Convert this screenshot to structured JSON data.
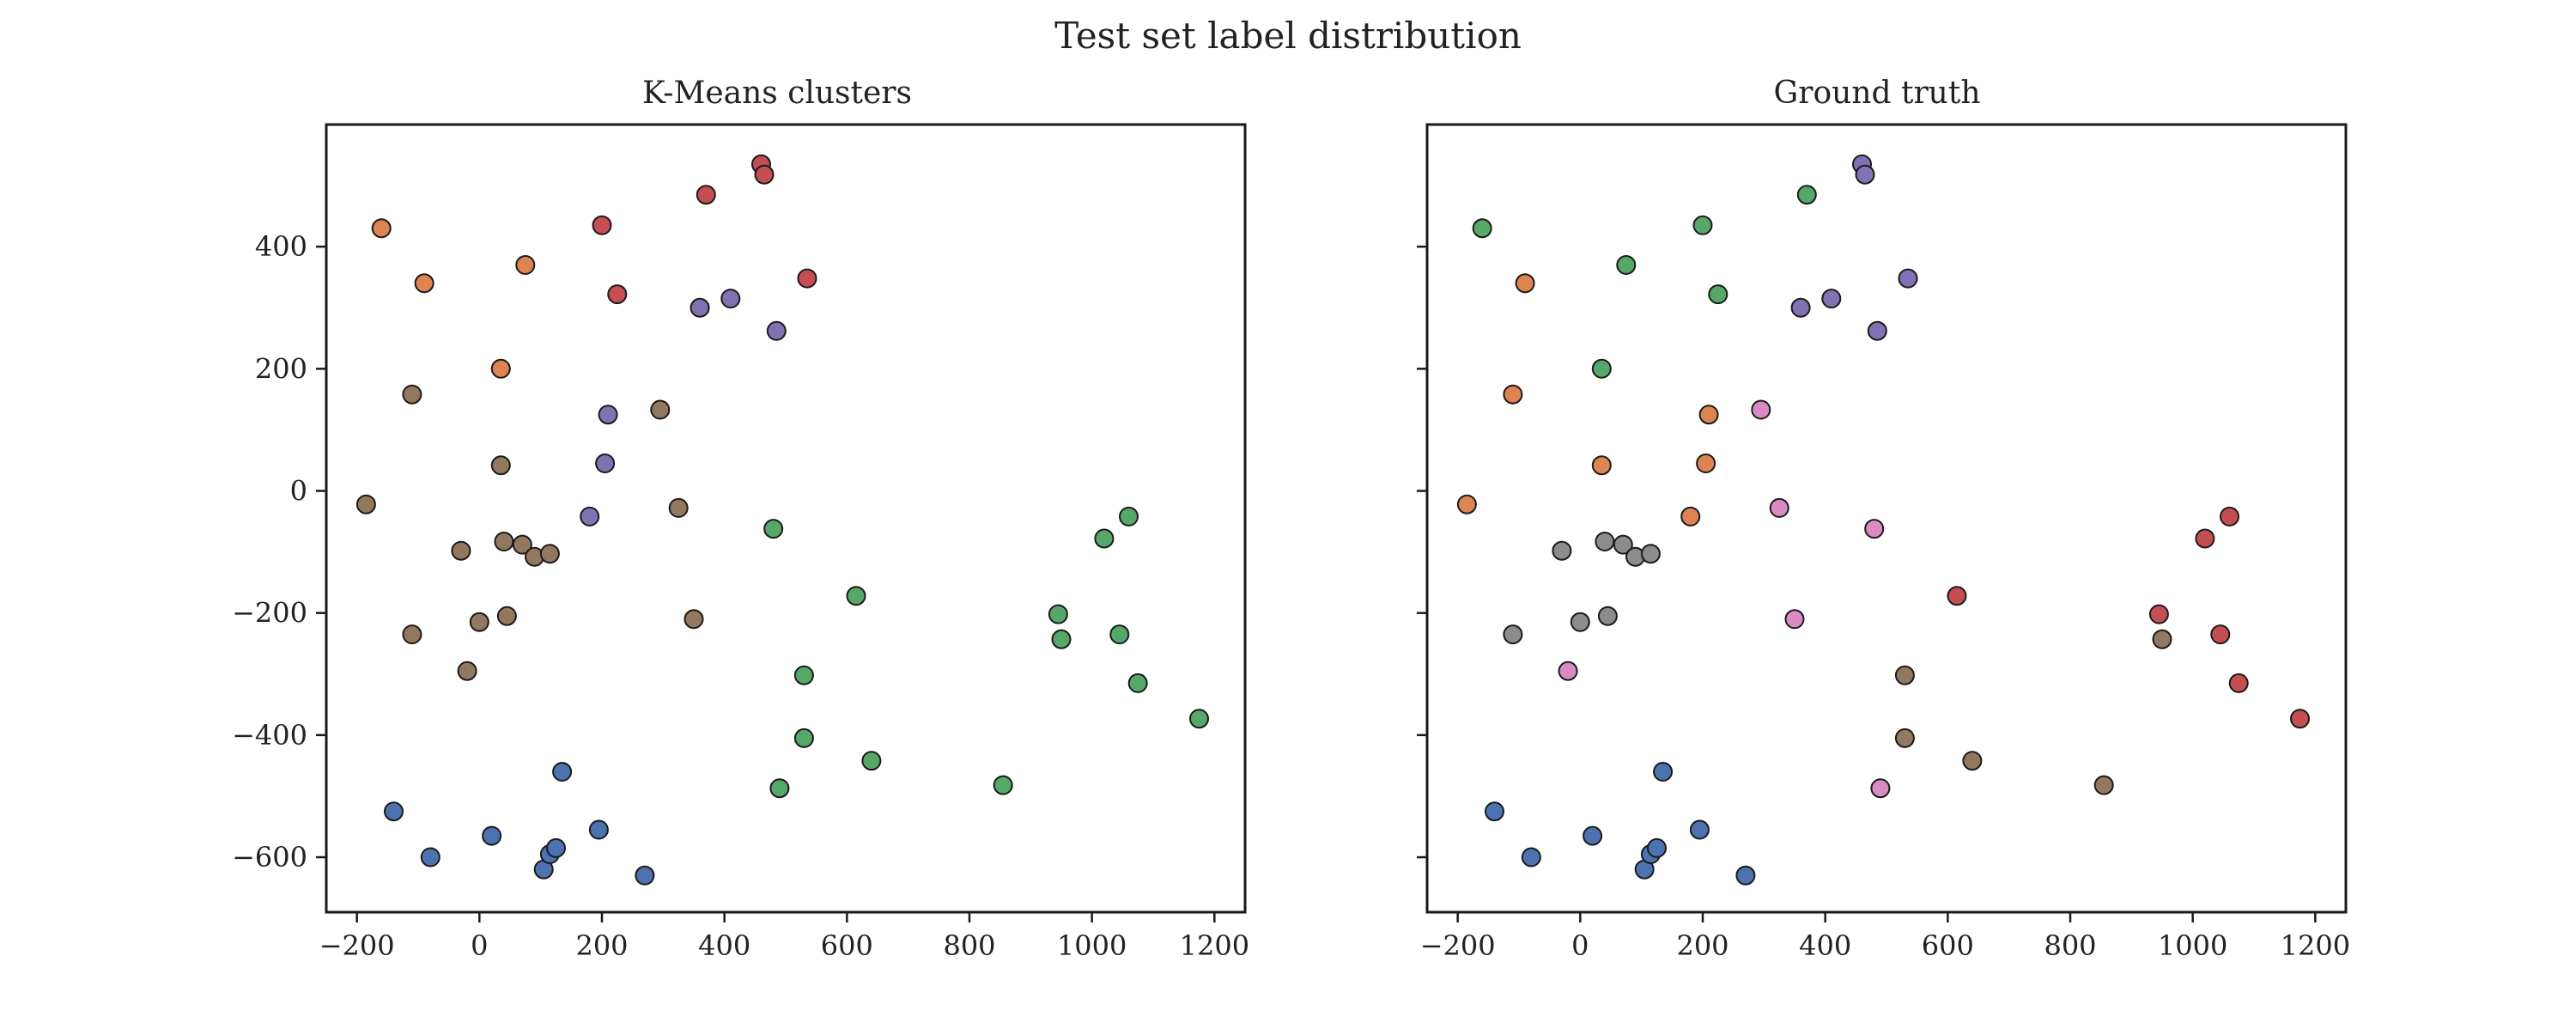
{
  "figure": {
    "title": "Test set label distribution"
  },
  "colors": {
    "blue": "#4c72b0",
    "orange": "#dd8452",
    "green": "#55a868",
    "red": "#c44e52",
    "purple": "#8172b3",
    "brown": "#937860",
    "pink": "#da8bc3",
    "gray": "#8c8c8c",
    "edge": "#1a1a1a",
    "axis": "#1a1a1a"
  },
  "chart_data": [
    {
      "type": "scatter",
      "title": "K-Means clusters",
      "xlabel": "",
      "ylabel": "",
      "xlim": [
        -250,
        1250
      ],
      "ylim": [
        -690,
        600
      ],
      "xticks": [
        -200,
        0,
        200,
        400,
        600,
        800,
        1000,
        1200
      ],
      "xtick_labels": [
        "−200",
        "0",
        "200",
        "400",
        "600",
        "800",
        "1000",
        "1200"
      ],
      "yticks": [
        400,
        200,
        0,
        -200,
        -400,
        -600
      ],
      "ytick_labels": [
        "400",
        "200",
        "0",
        "−200",
        "−400",
        "−600"
      ],
      "grid": false,
      "series": [
        {
          "color": "blue",
          "points": [
            [
              -140,
              -525
            ],
            [
              -80,
              -600
            ],
            [
              20,
              -565
            ],
            [
              105,
              -620
            ],
            [
              115,
              -595
            ],
            [
              125,
              -585
            ],
            [
              135,
              -460
            ],
            [
              195,
              -555
            ],
            [
              270,
              -630
            ]
          ]
        },
        {
          "color": "orange",
          "points": [
            [
              -160,
              430
            ],
            [
              -90,
              340
            ],
            [
              75,
              370
            ],
            [
              35,
              200
            ]
          ]
        },
        {
          "color": "red",
          "points": [
            [
              200,
              435
            ],
            [
              225,
              322
            ],
            [
              370,
              485
            ],
            [
              460,
              535
            ],
            [
              465,
              518
            ],
            [
              535,
              348
            ]
          ]
        },
        {
          "color": "purple",
          "points": [
            [
              360,
              300
            ],
            [
              410,
              315
            ],
            [
              485,
              262
            ],
            [
              210,
              125
            ],
            [
              205,
              45
            ],
            [
              180,
              -42
            ]
          ]
        },
        {
          "color": "brown",
          "points": [
            [
              -110,
              158
            ],
            [
              -185,
              -22
            ],
            [
              295,
              133
            ],
            [
              35,
              42
            ],
            [
              325,
              -28
            ],
            [
              -30,
              -98
            ],
            [
              40,
              -83
            ],
            [
              70,
              -88
            ],
            [
              90,
              -108
            ],
            [
              115,
              -103
            ],
            [
              -110,
              -235
            ],
            [
              0,
              -215
            ],
            [
              45,
              -205
            ],
            [
              -20,
              -295
            ],
            [
              350,
              -210
            ]
          ]
        },
        {
          "color": "green",
          "points": [
            [
              480,
              -62
            ],
            [
              615,
              -172
            ],
            [
              530,
              -302
            ],
            [
              530,
              -405
            ],
            [
              490,
              -487
            ],
            [
              640,
              -442
            ],
            [
              855,
              -482
            ],
            [
              945,
              -202
            ],
            [
              950,
              -243
            ],
            [
              1020,
              -78
            ],
            [
              1060,
              -42
            ],
            [
              1045,
              -235
            ],
            [
              1075,
              -315
            ],
            [
              1175,
              -373
            ]
          ]
        }
      ]
    },
    {
      "type": "scatter",
      "title": "Ground truth",
      "xlabel": "",
      "ylabel": "",
      "xlim": [
        -250,
        1250
      ],
      "ylim": [
        -690,
        600
      ],
      "xticks": [
        -200,
        0,
        200,
        400,
        600,
        800,
        1000,
        1200
      ],
      "xtick_labels": [
        "−200",
        "0",
        "200",
        "400",
        "600",
        "800",
        "1000",
        "1200"
      ],
      "yticks": [
        400,
        200,
        0,
        -200,
        -400,
        -600
      ],
      "ytick_labels": [],
      "grid": false,
      "series": [
        {
          "color": "blue",
          "points": [
            [
              -140,
              -525
            ],
            [
              -80,
              -600
            ],
            [
              20,
              -565
            ],
            [
              105,
              -620
            ],
            [
              115,
              -595
            ],
            [
              125,
              -585
            ],
            [
              135,
              -460
            ],
            [
              195,
              -555
            ],
            [
              270,
              -630
            ]
          ]
        },
        {
          "color": "orange",
          "points": [
            [
              -90,
              340
            ],
            [
              -110,
              158
            ],
            [
              -185,
              -22
            ],
            [
              35,
              42
            ],
            [
              210,
              125
            ],
            [
              205,
              45
            ],
            [
              180,
              -42
            ]
          ]
        },
        {
          "color": "green",
          "points": [
            [
              -160,
              430
            ],
            [
              75,
              370
            ],
            [
              35,
              200
            ],
            [
              200,
              435
            ],
            [
              225,
              322
            ],
            [
              370,
              485
            ]
          ]
        },
        {
          "color": "purple",
          "points": [
            [
              360,
              300
            ],
            [
              410,
              315
            ],
            [
              485,
              262
            ],
            [
              460,
              535
            ],
            [
              465,
              518
            ],
            [
              535,
              348
            ]
          ]
        },
        {
          "color": "pink",
          "points": [
            [
              295,
              133
            ],
            [
              325,
              -28
            ],
            [
              480,
              -62
            ],
            [
              350,
              -210
            ],
            [
              -20,
              -295
            ],
            [
              490,
              -487
            ]
          ]
        },
        {
          "color": "gray",
          "points": [
            [
              -30,
              -98
            ],
            [
              40,
              -83
            ],
            [
              70,
              -88
            ],
            [
              90,
              -108
            ],
            [
              115,
              -103
            ],
            [
              -110,
              -235
            ],
            [
              0,
              -215
            ],
            [
              45,
              -205
            ]
          ]
        },
        {
          "color": "red",
          "points": [
            [
              615,
              -172
            ],
            [
              945,
              -202
            ],
            [
              1020,
              -78
            ],
            [
              1060,
              -42
            ],
            [
              1045,
              -235
            ],
            [
              1075,
              -315
            ],
            [
              1175,
              -373
            ]
          ]
        },
        {
          "color": "brown",
          "points": [
            [
              530,
              -302
            ],
            [
              530,
              -405
            ],
            [
              640,
              -442
            ],
            [
              855,
              -482
            ],
            [
              950,
              -243
            ]
          ]
        }
      ]
    }
  ]
}
